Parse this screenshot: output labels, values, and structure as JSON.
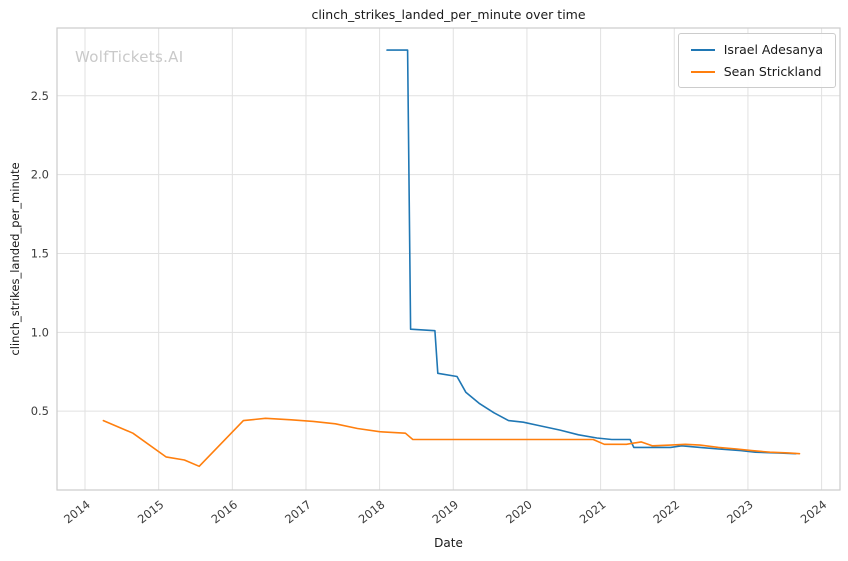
{
  "chart_data": {
    "type": "line",
    "title": "clinch_strikes_landed_per_minute over time",
    "xlabel": "Date",
    "ylabel": "clinch_strikes_landed_per_minute",
    "watermark": "WolfTickets.AI",
    "xlim": [
      2013.62,
      2024.25
    ],
    "ylim": [
      0.0,
      2.93
    ],
    "xticks": [
      2014,
      2015,
      2016,
      2017,
      2018,
      2019,
      2020,
      2021,
      2022,
      2023,
      2024
    ],
    "yticks": [
      0.5,
      1.0,
      1.5,
      2.0,
      2.5
    ],
    "grid": true,
    "legend_position": "upper right",
    "colors": {
      "grid": "#e1e1e1",
      "spine": "#cccccc",
      "tick_label": "#3d3d3d",
      "series1": "#1f77b4",
      "series2": "#ff7f0e"
    },
    "series": [
      {
        "name": "Israel Adesanya",
        "color": "#1f77b4",
        "x": [
          2018.1,
          2018.38,
          2018.42,
          2018.75,
          2018.79,
          2019.05,
          2019.17,
          2019.35,
          2019.55,
          2019.75,
          2019.95,
          2020.15,
          2020.45,
          2020.7,
          2020.95,
          2021.15,
          2021.4,
          2021.45,
          2021.7,
          2021.95,
          2022.1,
          2022.35,
          2022.6,
          2022.9,
          2023.1,
          2023.4,
          2023.65
        ],
        "y": [
          2.79,
          2.79,
          1.02,
          1.01,
          0.74,
          0.72,
          0.62,
          0.55,
          0.49,
          0.44,
          0.43,
          0.41,
          0.38,
          0.35,
          0.33,
          0.32,
          0.32,
          0.27,
          0.27,
          0.27,
          0.28,
          0.27,
          0.26,
          0.25,
          0.24,
          0.235,
          0.23
        ]
      },
      {
        "name": "Sean Strickland",
        "color": "#ff7f0e",
        "x": [
          2014.25,
          2014.65,
          2015.1,
          2015.35,
          2015.55,
          2016.15,
          2016.45,
          2016.8,
          2017.1,
          2017.4,
          2017.7,
          2018.0,
          2018.35,
          2018.45,
          2019.0,
          2019.6,
          2020.2,
          2020.9,
          2021.05,
          2021.35,
          2021.55,
          2021.7,
          2021.95,
          2022.15,
          2022.35,
          2022.6,
          2022.85,
          2023.05,
          2023.3,
          2023.55,
          2023.7
        ],
        "y": [
          0.44,
          0.36,
          0.21,
          0.19,
          0.15,
          0.44,
          0.455,
          0.445,
          0.435,
          0.42,
          0.39,
          0.37,
          0.36,
          0.32,
          0.32,
          0.32,
          0.32,
          0.32,
          0.29,
          0.29,
          0.305,
          0.28,
          0.285,
          0.29,
          0.285,
          0.27,
          0.26,
          0.25,
          0.24,
          0.235,
          0.23
        ]
      }
    ]
  }
}
